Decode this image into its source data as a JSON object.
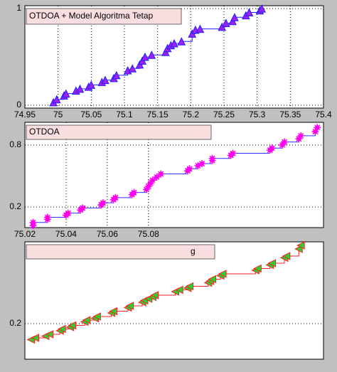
{
  "chart_data": [
    {
      "type": "step",
      "title": "OTDOA + Model Algoritma Tetap",
      "x": [
        74.993,
        74.998,
        75.009,
        75.012,
        75.027,
        75.033,
        75.046,
        75.05,
        75.066,
        75.071,
        75.084,
        75.088,
        75.105,
        75.112,
        75.123,
        75.127,
        75.131,
        75.141,
        75.162,
        75.165,
        75.17,
        75.175,
        75.186,
        75.202,
        75.207,
        75.214,
        75.247,
        75.253,
        75.263,
        75.266,
        75.283,
        75.288,
        75.304,
        75.307
      ],
      "values": [
        0.03,
        0.06,
        0.1,
        0.12,
        0.15,
        0.17,
        0.19,
        0.21,
        0.24,
        0.26,
        0.28,
        0.31,
        0.36,
        0.38,
        0.42,
        0.46,
        0.5,
        0.52,
        0.55,
        0.59,
        0.62,
        0.64,
        0.66,
        0.74,
        0.78,
        0.79,
        0.81,
        0.85,
        0.87,
        0.91,
        0.93,
        0.96,
        0.98,
        1.0
      ],
      "xlim": [
        74.95,
        75.4
      ],
      "ylim": [
        -0.03,
        1.03
      ],
      "xticks": [
        74.95,
        75,
        75.05,
        75.1,
        75.15,
        75.2,
        75.25,
        75.3,
        75.35,
        75.4
      ],
      "yticks": [
        0,
        1
      ],
      "grid": true,
      "marker": "triangle-up",
      "marker_color": "#a020f0",
      "marker_edge": "#2020ff",
      "line_color": "#2020ff"
    },
    {
      "type": "step",
      "title": "OTDOA",
      "x": [
        75.024,
        75.024,
        75.031,
        75.031,
        75.04,
        75.041,
        75.047,
        75.048,
        75.057,
        75.058,
        75.063,
        75.064,
        75.072,
        75.073,
        75.079,
        75.08,
        75.081,
        75.082,
        75.084,
        75.086,
        75.099,
        75.1,
        75.104,
        75.106,
        75.111,
        75.111,
        75.12,
        75.121,
        75.139,
        75.14,
        75.145,
        75.146,
        75.153,
        75.154,
        75.161,
        75.162
      ],
      "values": [
        0.02,
        0.05,
        0.08,
        0.1,
        0.12,
        0.14,
        0.17,
        0.19,
        0.22,
        0.24,
        0.27,
        0.29,
        0.32,
        0.34,
        0.37,
        0.4,
        0.43,
        0.46,
        0.49,
        0.52,
        0.55,
        0.57,
        0.6,
        0.62,
        0.65,
        0.67,
        0.7,
        0.72,
        0.75,
        0.77,
        0.8,
        0.83,
        0.86,
        0.89,
        0.93,
        0.97
      ],
      "xlim": [
        75.02,
        75.165
      ],
      "ylim": [
        0,
        1.02
      ],
      "xticks": [
        75.02,
        75.04,
        75.06,
        75.08
      ],
      "yticks": [
        0.2,
        0.8
      ],
      "grid": true,
      "marker": "star",
      "marker_color": "#ff0000",
      "marker_edge": "#ff00ff",
      "line_color": "#3030ff"
    },
    {
      "type": "step",
      "title": "g",
      "x": [
        75.023,
        75.025,
        75.03,
        75.032,
        75.037,
        75.038,
        75.042,
        75.043,
        75.049,
        75.05,
        75.054,
        75.055,
        75.062,
        75.063,
        75.07,
        75.071,
        75.077,
        75.078,
        75.08,
        75.082,
        75.083,
        75.093,
        75.095,
        75.099,
        75.1,
        75.109,
        75.11,
        75.111,
        75.115,
        75.116,
        75.132,
        75.133,
        75.139,
        75.14,
        75.146,
        75.147,
        75.153,
        75.154
      ],
      "values": [
        0.11,
        0.12,
        0.13,
        0.14,
        0.16,
        0.17,
        0.18,
        0.19,
        0.21,
        0.22,
        0.23,
        0.24,
        0.26,
        0.27,
        0.29,
        0.3,
        0.32,
        0.33,
        0.34,
        0.35,
        0.36,
        0.38,
        0.39,
        0.4,
        0.41,
        0.43,
        0.44,
        0.45,
        0.47,
        0.48,
        0.5,
        0.51,
        0.53,
        0.54,
        0.57,
        0.58,
        0.62,
        0.64
      ],
      "xlim": [
        75.02,
        75.165
      ],
      "ylim": [
        0,
        0.66
      ],
      "yticks": [
        0.2
      ],
      "grid": true,
      "marker": "triangle-left",
      "marker_color": "#33cc33",
      "marker_edge": "#ff2020",
      "line_color": "#ff2020"
    }
  ]
}
